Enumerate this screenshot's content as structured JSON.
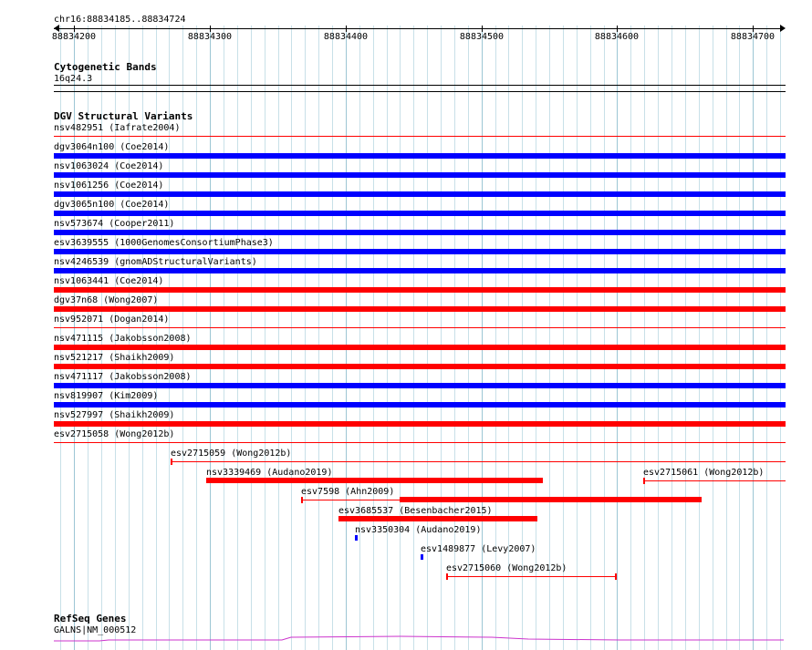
{
  "ruler": {
    "region": "chr16:88834185..88834724",
    "start": 88834185,
    "end": 88834724,
    "ticks": [
      "88834200",
      "88834300",
      "88834400",
      "88834500",
      "88834600",
      "88834700"
    ]
  },
  "cytobands": {
    "title": "Cytogenetic Bands",
    "band": "16q24.3"
  },
  "dgv": {
    "title": "DGV Structural Variants",
    "colors": {
      "gain": "#0000ff",
      "loss": "#ff0000",
      "thin": "#ff0000"
    },
    "full_rows": [
      {
        "label": "nsv482951 (Iafrate2004)",
        "type": "thin"
      },
      {
        "label": "dgv3064n100 (Coe2014)",
        "type": "gain"
      },
      {
        "label": "nsv1063024 (Coe2014)",
        "type": "gain"
      },
      {
        "label": "nsv1061256 (Coe2014)",
        "type": "gain"
      },
      {
        "label": "dgv3065n100 (Coe2014)",
        "type": "gain"
      },
      {
        "label": "nsv573674 (Cooper2011)",
        "type": "gain"
      },
      {
        "label": "esv3639555 (1000GenomesConsortiumPhase3)",
        "type": "gain"
      },
      {
        "label": "nsv4246539 (gnomADStructuralVariants)",
        "type": "gain"
      },
      {
        "label": "nsv1063441 (Coe2014)",
        "type": "loss"
      },
      {
        "label": "dgv37n68 (Wong2007)",
        "type": "loss"
      },
      {
        "label": "nsv952071 (Dogan2014)",
        "type": "thin"
      },
      {
        "label": "nsv471115 (Jakobsson2008)",
        "type": "loss"
      },
      {
        "label": "nsv521217 (Shaikh2009)",
        "type": "loss"
      },
      {
        "label": "nsv471117 (Jakobsson2008)",
        "type": "gain"
      },
      {
        "label": "nsv819907 (Kim2009)",
        "type": "gain"
      },
      {
        "label": "nsv527997 (Shaikh2009)",
        "type": "loss"
      },
      {
        "label": "esv2715058 (Wong2012b)",
        "type": "thin"
      }
    ],
    "partial_rows": [
      {
        "label": "esv2715059 (Wong2012b)",
        "style": "thin-cap",
        "start": 88834271,
        "end": 88834724,
        "row": 0
      },
      {
        "label": "nsv3339469 (Audano2019)",
        "style": "loss",
        "start": 88834297,
        "end": 88834545,
        "row": 1
      },
      {
        "label": "esv2715061 (Wong2012b)",
        "style": "thin-cap",
        "start": 88834619,
        "end": 88834724,
        "row": 1
      },
      {
        "label": "esv7598 (Ahn2009)",
        "style": "thin-thick",
        "start": 88834367,
        "end": 88834662,
        "thick_start": 88834440,
        "row": 2
      },
      {
        "label": "esv3685537 (Besenbacher2015)",
        "style": "loss",
        "start": 88834395,
        "end": 88834541,
        "row": 3
      },
      {
        "label": "nsv3350304 (Audano2019)",
        "style": "gain",
        "start": 88834407,
        "end": 88834409,
        "row": 4
      },
      {
        "label": "esv1489877 (Levy2007)",
        "style": "gain",
        "start": 88834455,
        "end": 88834456,
        "row": 5
      },
      {
        "label": "esv2715060 (Wong2012b)",
        "style": "thin-capped",
        "start": 88834474,
        "end": 88834600,
        "row": 6
      }
    ]
  },
  "refseq": {
    "title": "RefSeq Genes",
    "gene": "GALNS|NM_000512",
    "color": "#cc33cc"
  }
}
